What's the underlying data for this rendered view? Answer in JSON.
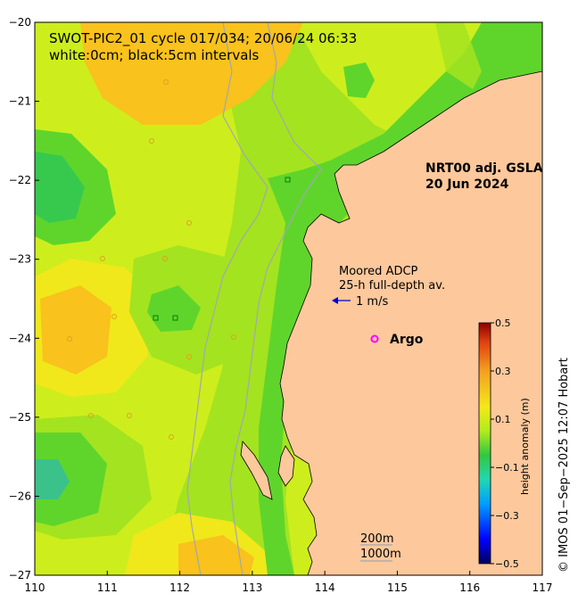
{
  "title": {
    "line1": "SWOT-PIC2_01 cycle 017/034; 20/06/24 06:33",
    "line2": "white:0cm; black:5cm intervals"
  },
  "product": {
    "line1": "NRT00 adj. GSLA",
    "line2": "20 Jun 2024"
  },
  "adcp": {
    "line1": "Moored ADCP",
    "line2": "25-h full-depth av.",
    "scale_label": "1 m/s",
    "arrow_color": "#0000cc"
  },
  "argo": {
    "label": "Argo",
    "marker_color": "#ff00ff",
    "lon": 114.72,
    "lat": -24.0
  },
  "isobaths": {
    "label_200": "200m",
    "label_1000": "1000m"
  },
  "axes": {
    "lon_min": 110,
    "lon_max": 117,
    "lat_min": -27,
    "lat_max": -20,
    "x_ticks": [
      "110",
      "111",
      "112",
      "113",
      "114",
      "115",
      "116",
      "117"
    ],
    "y_ticks": [
      "−20",
      "−21",
      "−22",
      "−23",
      "−24",
      "−25",
      "−26",
      "−27"
    ]
  },
  "colorbar": {
    "title": "height anomaly (m)",
    "range": [
      -0.5,
      0.5
    ],
    "ticks": [
      "0.5",
      "0.3",
      "0.1",
      "−0.1",
      "−0.3",
      "−0.5"
    ],
    "tick_values": [
      0.5,
      0.3,
      0.1,
      -0.1,
      -0.3,
      -0.5
    ]
  },
  "credit": "© IMOS 01−Sep−2025 12:07 Hobart",
  "colors": {
    "land": "#fcc89c",
    "high": "#f9c21c",
    "mid": "#f0e81a",
    "yellow_green": "#cdee1c",
    "green_light": "#a4e320",
    "green": "#5fd52c",
    "green_deep": "#36c94e",
    "teal": "#3bc28a",
    "isobath": "#a0a8b0"
  }
}
